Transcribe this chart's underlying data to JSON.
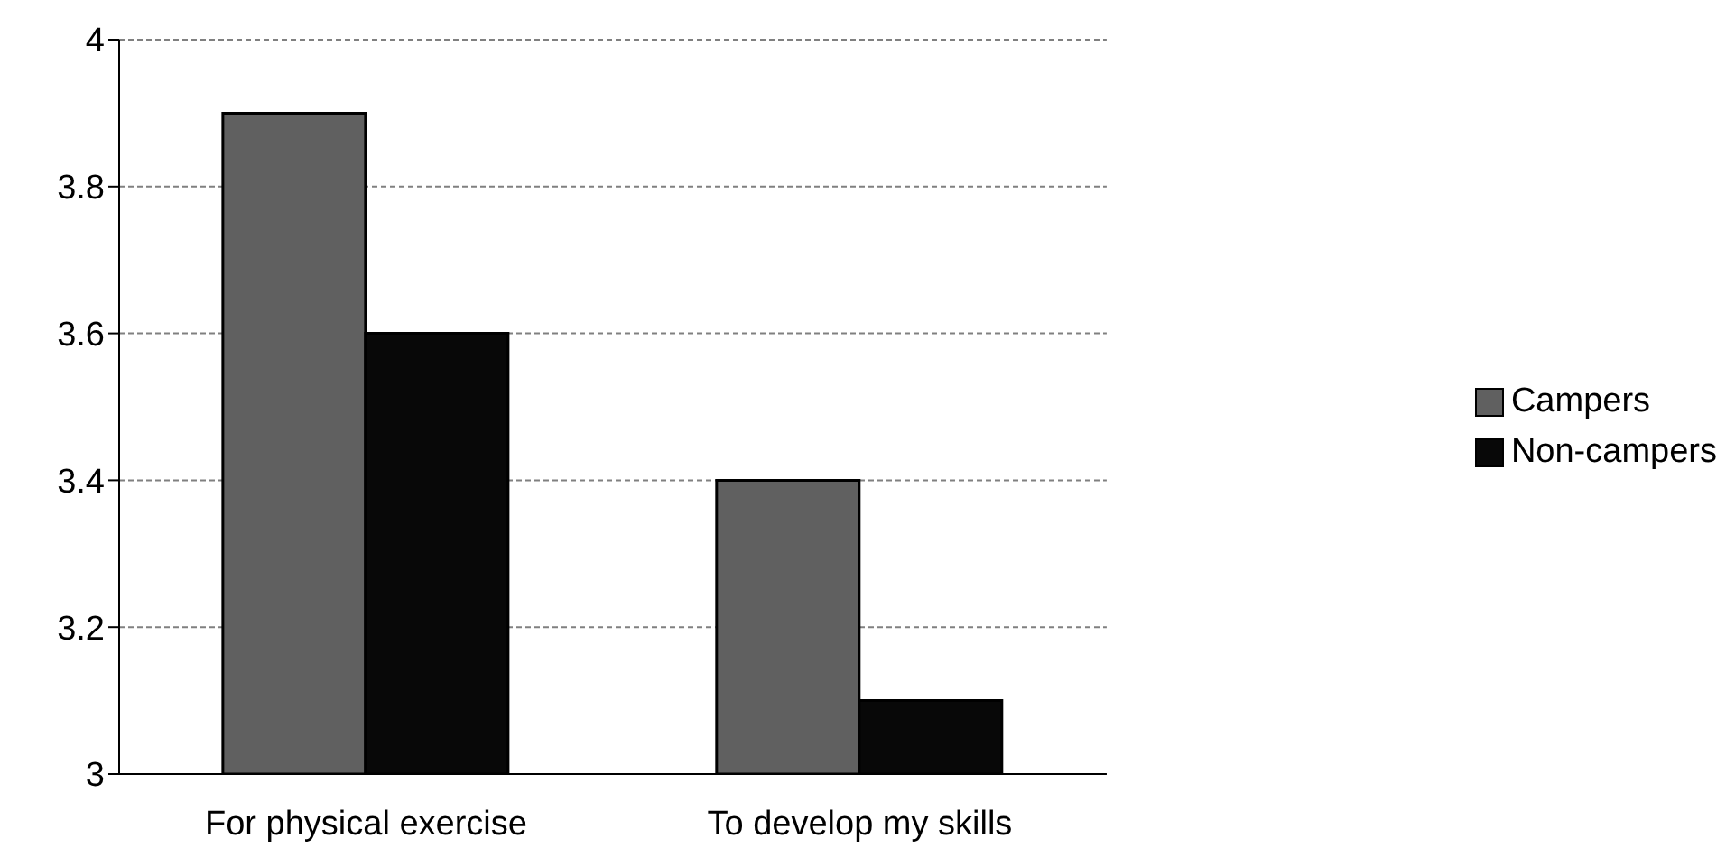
{
  "chart_data": {
    "type": "bar",
    "categories": [
      "For physical exercise",
      "To develop my skills"
    ],
    "series": [
      {
        "name": "Campers",
        "color": "#606060",
        "values": [
          3.9,
          3.4
        ]
      },
      {
        "name": "Non-campers",
        "color": "#080808",
        "values": [
          3.6,
          3.1
        ]
      }
    ],
    "ylim": [
      3,
      4
    ],
    "yticks": [
      3,
      3.2,
      3.4,
      3.6,
      3.8,
      4
    ],
    "grid": "y",
    "legend": "right"
  }
}
